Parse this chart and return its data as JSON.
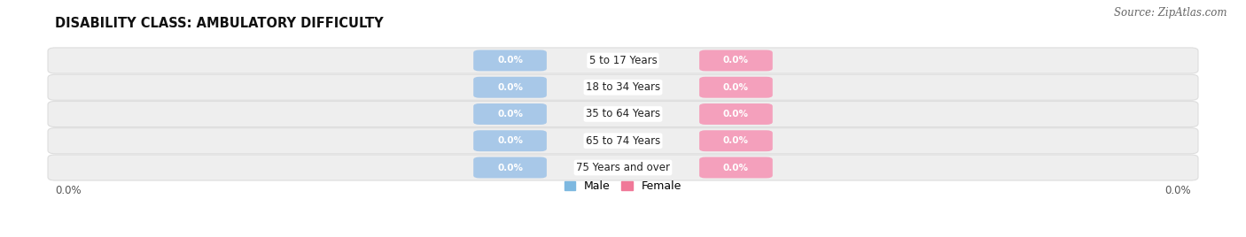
{
  "title": "DISABILITY CLASS: AMBULATORY DIFFICULTY",
  "source_text": "Source: ZipAtlas.com",
  "age_groups": [
    "5 to 17 Years",
    "18 to 34 Years",
    "35 to 64 Years",
    "65 to 74 Years",
    "75 Years and over"
  ],
  "male_values": [
    0.0,
    0.0,
    0.0,
    0.0,
    0.0
  ],
  "female_values": [
    0.0,
    0.0,
    0.0,
    0.0,
    0.0
  ],
  "male_color": "#a8c8e8",
  "female_color": "#f4a0bc",
  "male_label": "Male",
  "female_label": "Female",
  "male_legend_color": "#7db8e0",
  "female_legend_color": "#f07898",
  "bar_bg_color": "#eeeeee",
  "bar_bg_edge_color": "#dddddd",
  "background_color": "#ffffff",
  "title_fontsize": 10.5,
  "source_fontsize": 8.5,
  "label_fontsize": 8.5,
  "pill_label_fontsize": 7.5,
  "axis_tick_fontsize": 8.5,
  "axis_label_left": "0.0%",
  "axis_label_right": "0.0%"
}
